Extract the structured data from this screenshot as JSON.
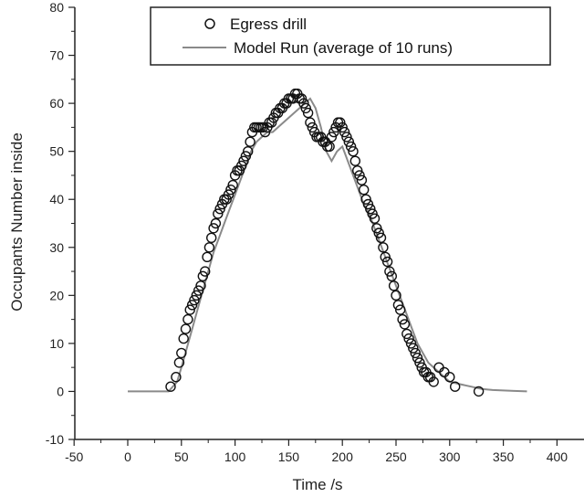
{
  "chart_data": {
    "type": "scatter",
    "xlabel": "Time /s",
    "ylabel": "Occupants Number inside",
    "xlim": [
      -50,
      400
    ],
    "ylim": [
      -10,
      80
    ],
    "xticks": [
      -50,
      0,
      50,
      100,
      150,
      200,
      250,
      300,
      350,
      400
    ],
    "yticks": [
      -10,
      0,
      10,
      20,
      30,
      40,
      50,
      60,
      70,
      80
    ],
    "grid": false,
    "legend_position": "top-center",
    "series": [
      {
        "name": "Egress drill",
        "kind": "markers",
        "marker": "open-circle",
        "color": "#111111",
        "x": [
          40,
          45,
          48,
          50,
          52,
          54,
          56,
          58,
          60,
          62,
          64,
          66,
          68,
          70,
          72,
          74,
          76,
          78,
          80,
          82,
          84,
          86,
          88,
          90,
          92,
          94,
          96,
          98,
          100,
          102,
          104,
          106,
          108,
          110,
          112,
          114,
          116,
          118,
          120,
          122,
          124,
          126,
          128,
          130,
          132,
          134,
          136,
          138,
          140,
          142,
          144,
          146,
          148,
          150,
          152,
          154,
          156,
          158,
          160,
          162,
          164,
          166,
          168,
          170,
          172,
          174,
          176,
          178,
          180,
          182,
          184,
          186,
          188,
          190,
          192,
          194,
          196,
          198,
          200,
          202,
          204,
          206,
          208,
          210,
          212,
          214,
          216,
          218,
          220,
          222,
          224,
          226,
          228,
          230,
          232,
          234,
          236,
          238,
          240,
          242,
          244,
          246,
          248,
          250,
          252,
          254,
          256,
          258,
          260,
          262,
          264,
          266,
          268,
          270,
          272,
          274,
          276,
          278,
          280,
          282,
          285,
          290,
          295,
          300,
          305,
          327
        ],
        "y": [
          1,
          3,
          6,
          8,
          11,
          13,
          15,
          17,
          18,
          19,
          20,
          21,
          22,
          24,
          25,
          28,
          30,
          32,
          34,
          35,
          37,
          38,
          39,
          40,
          40,
          41,
          42,
          43,
          45,
          46,
          46,
          47,
          48,
          49,
          50,
          52,
          54,
          55,
          55,
          55,
          55,
          55,
          54,
          55,
          56,
          56,
          57,
          58,
          58,
          59,
          59,
          60,
          60,
          61,
          61,
          61,
          62,
          62,
          61,
          61,
          60,
          59,
          58,
          56,
          55,
          54,
          53,
          53,
          53,
          52,
          52,
          51,
          51,
          53,
          54,
          55,
          56,
          56,
          55,
          54,
          53,
          52,
          51,
          50,
          48,
          46,
          45,
          44,
          42,
          40,
          39,
          38,
          37,
          36,
          34,
          33,
          32,
          30,
          28,
          27,
          25,
          24,
          22,
          20,
          18,
          17,
          15,
          14,
          12,
          11,
          10,
          9,
          8,
          7,
          6,
          5,
          4,
          4,
          3,
          3,
          2,
          5,
          4,
          3,
          1,
          0
        ]
      },
      {
        "name": "Model Run (average of 10 runs)",
        "kind": "line",
        "color": "#8a8a8a",
        "x": [
          0,
          10,
          20,
          30,
          38,
          42,
          46,
          50,
          55,
          60,
          65,
          70,
          75,
          80,
          85,
          90,
          95,
          100,
          105,
          110,
          115,
          120,
          125,
          130,
          135,
          140,
          145,
          150,
          155,
          160,
          165,
          170,
          175,
          180,
          185,
          190,
          195,
          200,
          205,
          210,
          215,
          220,
          225,
          230,
          235,
          240,
          245,
          250,
          255,
          260,
          265,
          270,
          275,
          280,
          285,
          290,
          295,
          300,
          310,
          320,
          330,
          340,
          350,
          360,
          372
        ],
        "y": [
          0,
          0,
          0,
          0,
          0,
          1,
          2,
          5,
          9,
          13,
          17,
          21,
          25,
          29,
          32,
          35,
          38,
          41,
          44,
          47,
          50,
          52,
          53,
          54,
          54,
          55,
          56,
          57,
          58,
          59,
          60,
          61,
          59,
          55,
          50,
          48,
          50,
          51,
          48,
          45,
          42,
          39,
          37,
          34,
          31,
          28,
          25,
          22,
          19,
          16,
          13,
          10,
          8,
          6,
          5,
          4,
          3,
          2,
          1.5,
          1,
          0.5,
          0.3,
          0.2,
          0.1,
          0
        ]
      }
    ]
  }
}
